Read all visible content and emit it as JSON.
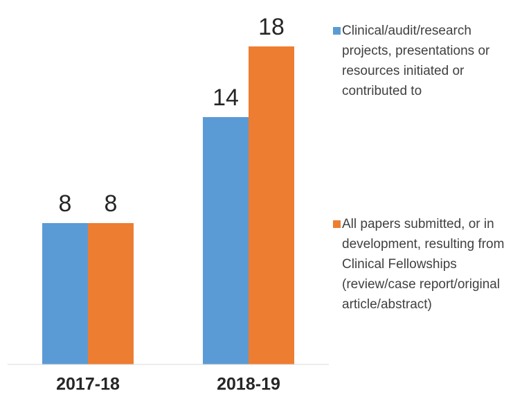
{
  "chart_data": {
    "type": "bar",
    "categories": [
      "2017-18",
      "2018-19"
    ],
    "series": [
      {
        "name": "Clinical/audit/research projects, presentations or resources initiated or contributed to",
        "color": "#5b9bd5",
        "values": [
          8,
          14
        ]
      },
      {
        "name": "All papers submitted, or in development, resulting from Clinical Fellowships (review/case report/original article/abstract)",
        "color": "#ed7d31",
        "values": [
          8,
          18
        ]
      }
    ],
    "ylim": [
      0,
      20
    ]
  }
}
